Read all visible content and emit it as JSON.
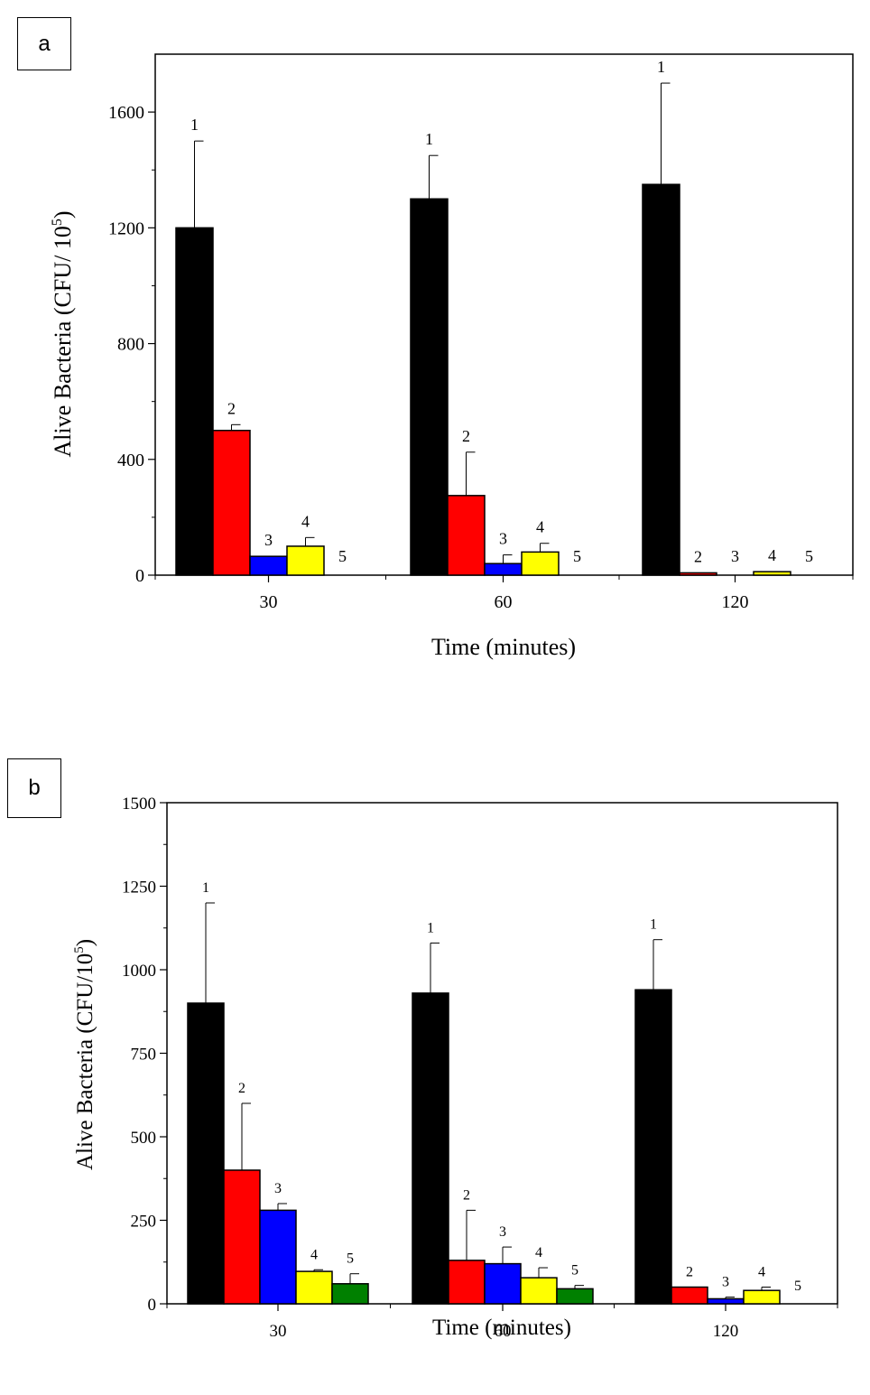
{
  "panels": [
    {
      "label": "a"
    },
    {
      "label": "b"
    }
  ],
  "chart_data": [
    {
      "type": "bar",
      "panel": "a",
      "xlabel": "Time (minutes)",
      "ylabel": "Alive Bacteria (CFU/ 10",
      "ylabel_sup": "5",
      "ylabel_close": ")",
      "ylim": [
        0,
        1800
      ],
      "yticks": [
        0,
        400,
        800,
        1200,
        1600
      ],
      "categories": [
        "30",
        "60",
        "120"
      ],
      "series": [
        {
          "name": "1",
          "color": "#000000",
          "values": [
            1200,
            1300,
            1350
          ],
          "errors": [
            300,
            150,
            350
          ],
          "labels": [
            "1",
            "1",
            "1"
          ]
        },
        {
          "name": "2",
          "color": "#ff0000",
          "values": [
            500,
            275,
            8
          ],
          "errors": [
            20,
            150,
            0
          ],
          "labels": [
            "2",
            "2",
            "2"
          ]
        },
        {
          "name": "3",
          "color": "#0000ff",
          "values": [
            65,
            40,
            0
          ],
          "errors": [
            0,
            30,
            0
          ],
          "labels": [
            "3",
            "3",
            "3"
          ]
        },
        {
          "name": "4",
          "color": "#ffff00",
          "values": [
            100,
            80,
            12
          ],
          "errors": [
            30,
            30,
            0
          ],
          "labels": [
            "4",
            "4",
            "4"
          ]
        },
        {
          "name": "5",
          "color": "#008000",
          "values": [
            0,
            0,
            0
          ],
          "errors": [
            0,
            0,
            0
          ],
          "labels": [
            "5",
            "5",
            "5"
          ]
        }
      ]
    },
    {
      "type": "bar",
      "panel": "b",
      "xlabel": "Time (minutes)",
      "ylabel": "Alive Bacteria (CFU/10",
      "ylabel_sup": "5",
      "ylabel_close": ")",
      "ylim": [
        0,
        1500
      ],
      "yticks": [
        0,
        250,
        500,
        750,
        1000,
        1250,
        1500
      ],
      "categories": [
        "30",
        "60",
        "120"
      ],
      "series": [
        {
          "name": "1",
          "color": "#000000",
          "values": [
            900,
            930,
            940
          ],
          "errors": [
            300,
            150,
            150
          ],
          "labels": [
            "1",
            "1",
            "1"
          ]
        },
        {
          "name": "2",
          "color": "#ff0000",
          "values": [
            400,
            130,
            50
          ],
          "errors": [
            200,
            150,
            0
          ],
          "labels": [
            "2",
            "2",
            "2"
          ]
        },
        {
          "name": "3",
          "color": "#0000ff",
          "values": [
            280,
            120,
            15
          ],
          "errors": [
            20,
            50,
            5
          ],
          "labels": [
            "3",
            "3",
            "3"
          ]
        },
        {
          "name": "4",
          "color": "#ffff00",
          "values": [
            97,
            78,
            40
          ],
          "errors": [
            5,
            30,
            10
          ],
          "labels": [
            "4",
            "4",
            "4"
          ]
        },
        {
          "name": "5",
          "color": "#008000",
          "values": [
            60,
            45,
            0
          ],
          "errors": [
            30,
            10,
            0
          ],
          "labels": [
            "5",
            "5",
            "5"
          ]
        }
      ]
    }
  ]
}
